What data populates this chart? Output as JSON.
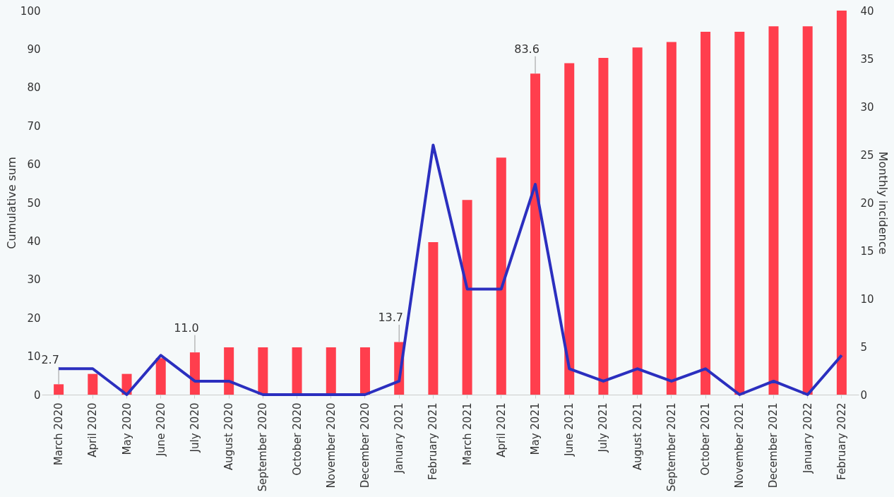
{
  "chart_data": {
    "type": "bar",
    "categories": [
      "March 2020",
      "April 2020",
      "May 2020",
      "June 2020",
      "July 2020",
      "August 2020",
      "September 2020",
      "October 2020",
      "November 2020",
      "December 2020",
      "January 2021",
      "February 2021",
      "March 2021",
      "April 2021",
      "May 2021",
      "June 2021",
      "July 2021",
      "August 2021",
      "September 2021",
      "October 2021",
      "November 2021",
      "December 2021",
      "January 2022",
      "February 2022"
    ],
    "ylabel": "Cumulative sum",
    "y2label": "Monthly incidence",
    "ylim": [
      0,
      100
    ],
    "yticks": [
      0,
      10,
      20,
      30,
      40,
      50,
      60,
      70,
      80,
      90,
      100
    ],
    "y2lim": [
      0,
      40
    ],
    "y2ticks": [
      0,
      5,
      10,
      15,
      20,
      25,
      30,
      35,
      40
    ],
    "grid": false,
    "series": [
      {
        "color": "#ff3e4d",
        "values": [
          2.7,
          5.4,
          5.4,
          9.5,
          11.0,
          12.3,
          12.3,
          12.3,
          12.3,
          12.3,
          13.7,
          39.7,
          50.7,
          61.7,
          83.6,
          86.3,
          87.7,
          90.4,
          91.8,
          94.5,
          94.5,
          95.9,
          95.9,
          100
        ],
        "value_labels": [
          "2.7",
          null,
          null,
          null,
          "11.0",
          null,
          null,
          null,
          null,
          null,
          "13.7",
          null,
          null,
          null,
          "83.6",
          null,
          null,
          null,
          null,
          null,
          null,
          null,
          null,
          null
        ]
      },
      {
        "type": "line",
        "axis": "y2",
        "color": "#2b2fbf",
        "values": [
          2.7,
          2.7,
          0,
          4.1,
          1.4,
          1.4,
          0,
          0,
          0,
          0,
          1.4,
          26.0,
          11.0,
          11.0,
          21.9,
          2.7,
          1.4,
          2.7,
          1.4,
          2.7,
          0,
          1.4,
          0,
          4.1
        ]
      }
    ]
  }
}
